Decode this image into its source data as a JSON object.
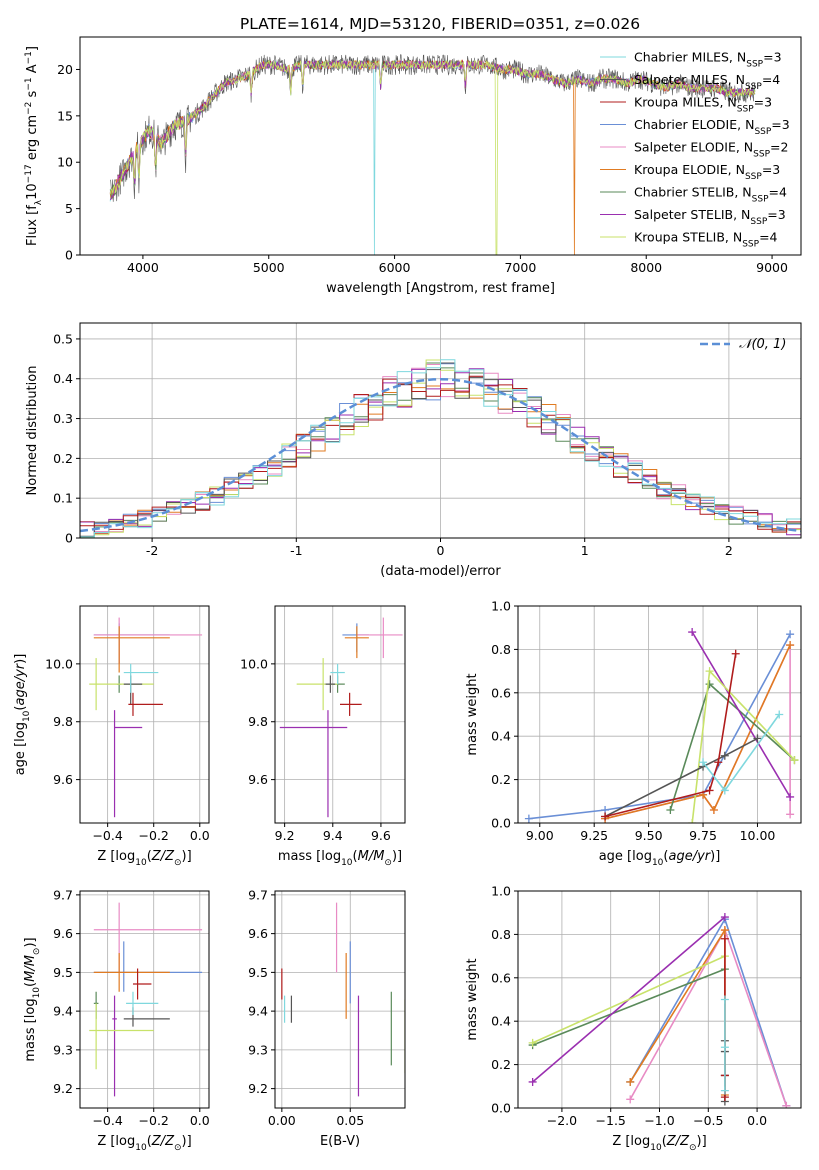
{
  "figure_title": "PLATE=1614, MJD=53120, FIBERID=0351, z=0.026",
  "colors": {
    "Chabrier MILES": "#6a8fd6",
    "Salpeter MILES": "#e88bc4",
    "Kroupa MILES": "#e07b22",
    "Chabrier ELODIE": "#5a8a5a",
    "Salpeter ELODIE": "#9a2fb0",
    "Kroupa ELODIE": "#c8e26a",
    "Chabrier STELIB": "#555555",
    "Salpeter STELIB": "#b01c1c",
    "Kroupa STELIB": "#7fd8de"
  },
  "chart_data": [
    {
      "id": "spectrum",
      "type": "line",
      "title": "PLATE=1614, MJD=53120, FIBERID=0351, z=0.026",
      "xlabel": "wavelength [Angstrom, rest frame]",
      "ylabel": "Flux [f_λ10^-17 erg cm^-2 s^-1 A^-1]",
      "xlim": [
        3500,
        9230
      ],
      "ylim": [
        0,
        23.5
      ],
      "xticks": [
        4000,
        5000,
        6000,
        7000,
        8000,
        9000
      ],
      "yticks": [
        0,
        5,
        10,
        15,
        20
      ],
      "grid": false,
      "legend_position": "top-right",
      "x": [
        3750,
        3850,
        3950,
        4050,
        4150,
        4250,
        4350,
        4450,
        4550,
        4650,
        4750,
        4850,
        4950,
        5050,
        5150,
        5250,
        5350,
        5450,
        5550,
        5650,
        5750,
        5850,
        5950,
        6050,
        6150,
        6250,
        6350,
        6450,
        6550,
        6650,
        6750,
        6850,
        6950,
        7050,
        7150,
        7250,
        7350,
        7450,
        7550,
        7650,
        7750,
        7850,
        7950,
        8050,
        8150,
        8250,
        8350,
        8450,
        8550,
        8650,
        8750,
        8850
      ],
      "y": [
        6.5,
        9.0,
        11.5,
        13.5,
        12.0,
        14.0,
        14.5,
        15.5,
        17.0,
        18.5,
        19.0,
        19.5,
        20.5,
        20.5,
        20.0,
        20.5,
        20.5,
        20.5,
        20.5,
        20.5,
        20.5,
        20.5,
        20.5,
        20.5,
        20.5,
        20.5,
        20.5,
        20.5,
        20.5,
        20.5,
        20.5,
        20.0,
        20.0,
        19.5,
        19.5,
        19.0,
        18.5,
        19.0,
        18.5,
        19.0,
        19.0,
        18.5,
        19.0,
        18.5,
        18.0,
        18.5,
        18.0,
        18.0,
        18.0,
        17.5,
        17.5,
        17.5
      ],
      "series": [
        {
          "name": "Chabrier MILES, N_SSP=3"
        },
        {
          "name": "Salpeter MILES, N_SSP=4"
        },
        {
          "name": "Kroupa MILES, N_SSP=3"
        },
        {
          "name": "Chabrier ELODIE, N_SSP=3"
        },
        {
          "name": "Salpeter ELODIE, N_SSP=2"
        },
        {
          "name": "Kroupa ELODIE, N_SSP=3"
        },
        {
          "name": "Chabrier STELIB, N_SSP=4"
        },
        {
          "name": "Salpeter STELIB, N_SSP=3"
        },
        {
          "name": "Kroupa STELIB, N_SSP=4"
        }
      ]
    },
    {
      "id": "residuals",
      "type": "line",
      "xlabel": "(data-model)/error",
      "ylabel": "Normed distribution",
      "xlim": [
        -2.5,
        2.5
      ],
      "ylim": [
        0,
        0.54
      ],
      "xticks": [
        -2,
        -1,
        0,
        1,
        2
      ],
      "yticks": [
        0.0,
        0.1,
        0.2,
        0.3,
        0.4,
        0.5
      ],
      "grid": true,
      "legend_position": "top-right",
      "normal_curve": {
        "name": "𝒩(0, 1)",
        "mu": 0,
        "sigma": 1
      },
      "bin_edges": [
        -2.5,
        -2.4,
        -2.3,
        -2.2,
        -2.1,
        -2.0,
        -1.9,
        -1.8,
        -1.7,
        -1.6,
        -1.5,
        -1.4,
        -1.3,
        -1.2,
        -1.1,
        -1.0,
        -0.9,
        -0.8,
        -0.7,
        -0.6,
        -0.5,
        -0.4,
        -0.3,
        -0.2,
        -0.1,
        0.0,
        0.1,
        0.2,
        0.3,
        0.4,
        0.5,
        0.6,
        0.7,
        0.8,
        0.9,
        1.0,
        1.1,
        1.2,
        1.3,
        1.4,
        1.5,
        1.6,
        1.7,
        1.8,
        1.9,
        2.0,
        2.1,
        2.2,
        2.3,
        2.4,
        2.5
      ],
      "histogram_base": [
        0.022,
        0.028,
        0.033,
        0.04,
        0.048,
        0.057,
        0.068,
        0.08,
        0.093,
        0.108,
        0.125,
        0.143,
        0.163,
        0.184,
        0.206,
        0.228,
        0.251,
        0.274,
        0.297,
        0.319,
        0.34,
        0.359,
        0.375,
        0.389,
        0.397,
        0.402,
        0.397,
        0.389,
        0.375,
        0.359,
        0.34,
        0.319,
        0.297,
        0.274,
        0.251,
        0.228,
        0.206,
        0.184,
        0.163,
        0.143,
        0.125,
        0.108,
        0.093,
        0.08,
        0.068,
        0.057,
        0.048,
        0.04,
        0.033,
        0.028
      ]
    },
    {
      "id": "age-vs-Z",
      "type": "scatter",
      "xlabel": "Z [log10(Z/Z⊙)]",
      "ylabel": "age  [log10(age/yr)]",
      "xlim": [
        -0.52,
        0.04
      ],
      "ylim": [
        9.45,
        10.2
      ],
      "xticks": [
        -0.4,
        -0.2,
        0.0
      ],
      "xtick_labels": [
        "−0.4",
        "−0.2",
        "0.0"
      ],
      "yticks": [
        9.6,
        9.8,
        10.0
      ],
      "ytick_labels": [
        "9.6",
        "9.8",
        "10.0"
      ],
      "grid": true,
      "points": [
        {
          "c": "Chabrier MILES",
          "x": -0.35,
          "xlo": -0.46,
          "xhi": -0.13,
          "y": 10.1,
          "ylo": 10.0,
          "yhi": 10.14
        },
        {
          "c": "Salpeter MILES",
          "x": -0.35,
          "xlo": -0.46,
          "xhi": 0.01,
          "y": 10.1,
          "ylo": 10.0,
          "yhi": 10.16
        },
        {
          "c": "Kroupa MILES",
          "x": -0.35,
          "xlo": -0.46,
          "xhi": -0.13,
          "y": 10.09,
          "ylo": 9.97,
          "yhi": 10.13
        },
        {
          "c": "Chabrier ELODIE",
          "x": -0.35,
          "xlo": -0.36,
          "xhi": -0.34,
          "y": 9.93,
          "ylo": 9.9,
          "yhi": 9.96
        },
        {
          "c": "Salpeter ELODIE",
          "x": -0.37,
          "xlo": -0.37,
          "xhi": -0.25,
          "y": 9.78,
          "ylo": 9.47,
          "yhi": 9.84
        },
        {
          "c": "Kroupa ELODIE",
          "x": -0.45,
          "xlo": -0.48,
          "xhi": -0.2,
          "y": 9.93,
          "ylo": 9.84,
          "yhi": 10.02
        },
        {
          "c": "Chabrier STELIB",
          "x": -0.3,
          "xlo": -0.33,
          "xhi": -0.25,
          "y": 9.93,
          "ylo": 9.86,
          "yhi": 9.96
        },
        {
          "c": "Salpeter STELIB",
          "x": -0.29,
          "xlo": -0.31,
          "xhi": -0.16,
          "y": 9.86,
          "ylo": 9.82,
          "yhi": 9.9
        },
        {
          "c": "Kroupa STELIB",
          "x": -0.3,
          "xlo": -0.33,
          "xhi": -0.18,
          "y": 9.97,
          "ylo": 9.9,
          "yhi": 10.0
        }
      ]
    },
    {
      "id": "age-vs-mass",
      "type": "scatter",
      "xlabel": "mass [log10(M/M⊙)]",
      "ylabel": "",
      "xlim": [
        9.16,
        9.7
      ],
      "ylim": [
        9.45,
        10.2
      ],
      "xticks": [
        9.2,
        9.4,
        9.6
      ],
      "xtick_labels": [
        "9.2",
        "9.4",
        "9.6"
      ],
      "yticks": [
        9.6,
        9.8,
        10.0
      ],
      "ytick_labels": [
        "9.6",
        "9.8",
        "10.0"
      ],
      "grid": true,
      "points": [
        {
          "c": "Chabrier MILES",
          "x": 9.5,
          "xlo": 9.44,
          "xhi": 9.55,
          "y": 10.1,
          "ylo": 10.04,
          "yhi": 10.14
        },
        {
          "c": "Salpeter MILES",
          "x": 9.61,
          "xlo": 9.5,
          "xhi": 9.69,
          "y": 10.1,
          "ylo": 10.02,
          "yhi": 10.16
        },
        {
          "c": "Kroupa MILES",
          "x": 9.5,
          "xlo": 9.45,
          "xhi": 9.55,
          "y": 10.09,
          "ylo": 10.02,
          "yhi": 10.13
        },
        {
          "c": "Chabrier ELODIE",
          "x": 9.42,
          "xlo": 9.4,
          "xhi": 9.45,
          "y": 9.93,
          "ylo": 9.9,
          "yhi": 9.96
        },
        {
          "c": "Salpeter ELODIE",
          "x": 9.38,
          "xlo": 9.18,
          "xhi": 9.46,
          "y": 9.78,
          "ylo": 9.47,
          "yhi": 9.84
        },
        {
          "c": "Kroupa ELODIE",
          "x": 9.36,
          "xlo": 9.25,
          "xhi": 9.42,
          "y": 9.93,
          "ylo": 9.84,
          "yhi": 10.02
        },
        {
          "c": "Chabrier STELIB",
          "x": 9.39,
          "xlo": 9.37,
          "xhi": 9.41,
          "y": 9.93,
          "ylo": 9.9,
          "yhi": 9.96
        },
        {
          "c": "Salpeter STELIB",
          "x": 9.47,
          "xlo": 9.43,
          "xhi": 9.52,
          "y": 9.86,
          "ylo": 9.82,
          "yhi": 9.9
        },
        {
          "c": "Kroupa STELIB",
          "x": 9.42,
          "xlo": 9.39,
          "xhi": 9.45,
          "y": 9.97,
          "ylo": 9.93,
          "yhi": 10.0
        }
      ]
    },
    {
      "id": "weight-vs-age",
      "type": "line",
      "xlabel": "age  [log10(age/yr)]",
      "ylabel": "mass weight",
      "xlim": [
        8.9,
        10.2
      ],
      "ylim": [
        0,
        1.0
      ],
      "xticks": [
        9.0,
        9.25,
        9.5,
        9.75,
        10.0
      ],
      "xtick_labels": [
        "9.00",
        "9.25",
        "9.50",
        "9.75",
        "10.00"
      ],
      "yticks": [
        0.0,
        0.2,
        0.4,
        0.6,
        0.8,
        1.0
      ],
      "ytick_labels": [
        "0.0",
        "0.2",
        "0.4",
        "0.6",
        "0.8",
        "1.0"
      ],
      "grid": true,
      "series": [
        {
          "c": "Chabrier MILES",
          "x": [
            8.95,
            9.3,
            9.75,
            10.15
          ],
          "y": [
            0.02,
            0.06,
            0.13,
            0.87
          ]
        },
        {
          "c": "Salpeter MILES",
          "x": [
            9.3,
            9.75,
            9.8,
            10.15,
            10.15
          ],
          "y": [
            0.02,
            0.13,
            0.06,
            0.82,
            0.04
          ]
        },
        {
          "c": "Kroupa MILES",
          "x": [
            9.3,
            9.75,
            9.8,
            10.15
          ],
          "y": [
            0.02,
            0.13,
            0.06,
            0.82
          ]
        },
        {
          "c": "Chabrier ELODIE",
          "x": [
            9.6,
            9.78,
            10.17
          ],
          "y": [
            0.06,
            0.64,
            0.29
          ]
        },
        {
          "c": "Salpeter ELODIE",
          "x": [
            9.7,
            10.15
          ],
          "y": [
            0.88,
            0.12
          ]
        },
        {
          "c": "Kroupa ELODIE",
          "x": [
            9.7,
            9.78,
            10.17
          ],
          "y": [
            0.0,
            0.7,
            0.29
          ]
        },
        {
          "c": "Chabrier STELIB",
          "x": [
            9.3,
            9.75,
            9.85,
            10.0
          ],
          "y": [
            0.03,
            0.26,
            0.31,
            0.39
          ]
        },
        {
          "c": "Salpeter STELIB",
          "x": [
            9.3,
            9.78,
            9.82,
            9.9
          ],
          "y": [
            0.03,
            0.15,
            0.28,
            0.78
          ]
        },
        {
          "c": "Kroupa STELIB",
          "x": [
            9.75,
            9.85,
            10.1
          ],
          "y": [
            0.28,
            0.15,
            0.5
          ]
        }
      ]
    },
    {
      "id": "mass-vs-Z",
      "type": "scatter",
      "xlabel": "Z [log10(Z/Z⊙)]",
      "ylabel": "mass [log10(M/M⊙)]",
      "xlim": [
        -0.52,
        0.04
      ],
      "ylim": [
        9.15,
        9.71
      ],
      "xticks": [
        -0.4,
        -0.2,
        0.0
      ],
      "xtick_labels": [
        "−0.4",
        "−0.2",
        "0.0"
      ],
      "yticks": [
        9.2,
        9.3,
        9.4,
        9.5,
        9.6,
        9.7
      ],
      "ytick_labels": [
        "9.2",
        "9.3",
        "9.4",
        "9.5",
        "9.6",
        "9.7"
      ],
      "grid": true,
      "points": [
        {
          "c": "Chabrier MILES",
          "x": -0.33,
          "xlo": -0.46,
          "xhi": 0.01,
          "y": 9.5,
          "ylo": 9.45,
          "yhi": 9.58
        },
        {
          "c": "Salpeter MILES",
          "x": -0.35,
          "xlo": -0.46,
          "xhi": 0.01,
          "y": 9.61,
          "ylo": 9.5,
          "yhi": 9.68
        },
        {
          "c": "Kroupa MILES",
          "x": -0.35,
          "xlo": -0.46,
          "xhi": -0.13,
          "y": 9.5,
          "ylo": 9.45,
          "yhi": 9.55
        },
        {
          "c": "Chabrier ELODIE",
          "x": -0.45,
          "xlo": -0.46,
          "xhi": -0.44,
          "y": 9.42,
          "ylo": 9.38,
          "yhi": 9.45
        },
        {
          "c": "Salpeter ELODIE",
          "x": -0.37,
          "xlo": -0.38,
          "xhi": -0.36,
          "y": 9.38,
          "ylo": 9.18,
          "yhi": 9.44
        },
        {
          "c": "Kroupa ELODIE",
          "x": -0.45,
          "xlo": -0.48,
          "xhi": -0.2,
          "y": 9.35,
          "ylo": 9.25,
          "yhi": 9.42
        },
        {
          "c": "Chabrier STELIB",
          "x": -0.29,
          "xlo": -0.33,
          "xhi": -0.13,
          "y": 9.38,
          "ylo": 9.36,
          "yhi": 9.41
        },
        {
          "c": "Salpeter STELIB",
          "x": -0.27,
          "xlo": -0.29,
          "xhi": -0.21,
          "y": 9.47,
          "ylo": 9.43,
          "yhi": 9.51
        },
        {
          "c": "Kroupa STELIB",
          "x": -0.29,
          "xlo": -0.32,
          "xhi": -0.18,
          "y": 9.42,
          "ylo": 9.39,
          "yhi": 9.45
        }
      ]
    },
    {
      "id": "mass-vs-EBV",
      "type": "scatter",
      "xlabel": "E(B-V)",
      "ylabel": "",
      "xlim": [
        -0.005,
        0.09
      ],
      "ylim": [
        9.15,
        9.71
      ],
      "xticks": [
        0.0,
        0.05
      ],
      "xtick_labels": [
        "0.00",
        "0.05"
      ],
      "yticks": [
        9.2,
        9.3,
        9.4,
        9.5,
        9.6,
        9.7
      ],
      "ytick_labels": [
        "9.2",
        "9.3",
        "9.4",
        "9.5",
        "9.6",
        "9.7"
      ],
      "grid": true,
      "points": [
        {
          "c": "Chabrier MILES",
          "x": 0.05,
          "xlo": 0.05,
          "xhi": 0.05,
          "y": 9.5,
          "ylo": 9.42,
          "yhi": 9.58
        },
        {
          "c": "Salpeter MILES",
          "x": 0.04,
          "xlo": 0.04,
          "xhi": 0.04,
          "y": 9.61,
          "ylo": 9.5,
          "yhi": 9.68
        },
        {
          "c": "Kroupa MILES",
          "x": 0.047,
          "xlo": 0.047,
          "xhi": 0.047,
          "y": 9.46,
          "ylo": 9.38,
          "yhi": 9.55
        },
        {
          "c": "Chabrier ELODIE",
          "x": 0.08,
          "xlo": 0.08,
          "xhi": 0.08,
          "y": 9.37,
          "ylo": 9.26,
          "yhi": 9.45
        },
        {
          "c": "Salpeter ELODIE",
          "x": 0.056,
          "xlo": 0.056,
          "xhi": 0.056,
          "y": 9.32,
          "ylo": 9.18,
          "yhi": 9.44
        },
        {
          "c": "Kroupa ELODIE",
          "x": 0.09,
          "xlo": 0.09,
          "xhi": 0.09,
          "y": 9.35,
          "ylo": 9.24,
          "yhi": 9.43
        },
        {
          "c": "Chabrier STELIB",
          "x": 0.007,
          "xlo": 0.007,
          "xhi": 0.007,
          "y": 9.4,
          "ylo": 9.37,
          "yhi": 9.44
        },
        {
          "c": "Salpeter STELIB",
          "x": 0.0,
          "xlo": 0.0,
          "xhi": 0.0,
          "y": 9.47,
          "ylo": 9.43,
          "yhi": 9.51
        },
        {
          "c": "Kroupa STELIB",
          "x": 0.002,
          "xlo": 0.002,
          "xhi": 0.002,
          "y": 9.4,
          "ylo": 9.37,
          "yhi": 9.44
        }
      ]
    },
    {
      "id": "weight-vs-Z",
      "type": "line",
      "xlabel": "Z [log10(Z/Z⊙)]",
      "ylabel": "mass weight",
      "xlim": [
        -2.45,
        0.45
      ],
      "ylim": [
        0,
        1.0
      ],
      "xticks": [
        -2.0,
        -1.5,
        -1.0,
        -0.5,
        0.0
      ],
      "xtick_labels": [
        "−2.0",
        "−1.5",
        "−1.0",
        "−0.5",
        "0.0"
      ],
      "yticks": [
        0.0,
        0.2,
        0.4,
        0.6,
        0.8,
        1.0
      ],
      "ytick_labels": [
        "0.0",
        "0.2",
        "0.4",
        "0.6",
        "0.8",
        "1.0"
      ],
      "grid": true,
      "series": [
        {
          "c": "Chabrier MILES",
          "x": [
            -1.3,
            -0.33,
            0.3
          ],
          "y": [
            0.12,
            0.87,
            0.01
          ]
        },
        {
          "c": "Salpeter MILES",
          "x": [
            -1.3,
            -0.33,
            0.3
          ],
          "y": [
            0.04,
            0.82,
            0.01
          ]
        },
        {
          "c": "Kroupa MILES",
          "x": [
            -1.3,
            -0.33,
            -0.33
          ],
          "y": [
            0.12,
            0.82,
            0.06
          ]
        },
        {
          "c": "Chabrier ELODIE",
          "x": [
            -2.3,
            -0.33
          ],
          "y": [
            0.29,
            0.64
          ]
        },
        {
          "c": "Salpeter ELODIE",
          "x": [
            -2.3,
            -0.33
          ],
          "y": [
            0.12,
            0.88
          ]
        },
        {
          "c": "Kroupa ELODIE",
          "x": [
            -2.3,
            -0.33
          ],
          "y": [
            0.3,
            0.7
          ]
        },
        {
          "c": "Chabrier STELIB",
          "x": [
            -0.33,
            -0.33,
            -0.33,
            -0.33
          ],
          "y": [
            0.03,
            0.15,
            0.26,
            0.31
          ]
        },
        {
          "c": "Salpeter STELIB",
          "x": [
            -0.33,
            -0.33,
            -0.33
          ],
          "y": [
            0.05,
            0.15,
            0.78
          ]
        },
        {
          "c": "Kroupa STELIB",
          "x": [
            -0.33,
            -0.33,
            -0.33
          ],
          "y": [
            0.08,
            0.28,
            0.5
          ]
        }
      ]
    }
  ]
}
